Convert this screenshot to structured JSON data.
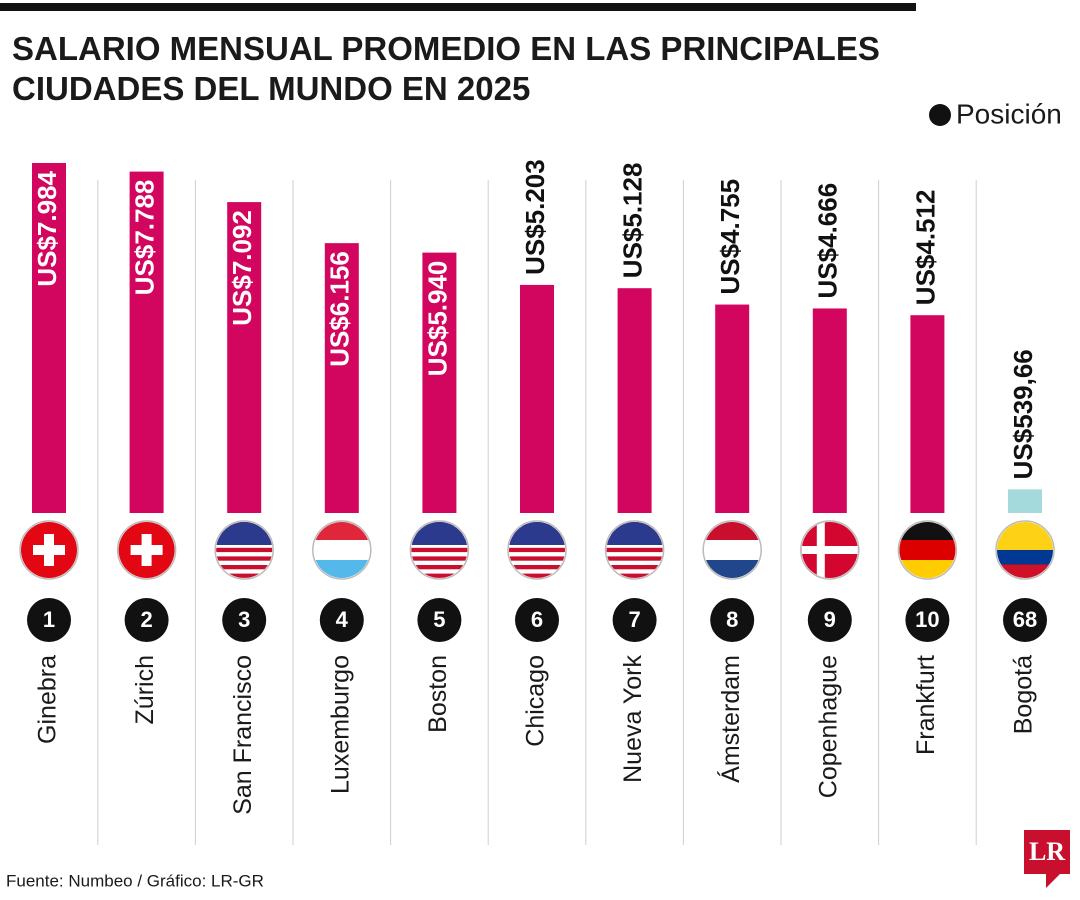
{
  "chart_data": {
    "type": "bar",
    "title": [
      "SALARIO MENSUAL PROMEDIO EN LAS PRINCIPALES",
      "CIUDADES DEL MUNDO EN 2025"
    ],
    "legend_label": "Posición",
    "categories": [
      "Ginebra",
      "Zúrich",
      "San Francisco",
      "Luxemburgo",
      "Boston",
      "Chicago",
      "Nueva York",
      "Ámsterdam",
      "Copenhague",
      "Frankfurt",
      "Bogotá"
    ],
    "values": [
      7984,
      7788,
      7092,
      6156,
      5940,
      5203,
      5128,
      4755,
      4666,
      4512,
      539.66
    ],
    "value_labels": [
      "US$7.984",
      "US$7.788",
      "US$7.092",
      "US$6.156",
      "US$5.940",
      "US$5.203",
      "US$5.128",
      "US$4.755",
      "US$4.666",
      "US$4.512",
      "US$539,66"
    ],
    "colors": [
      "#d3065f",
      "#d3065f",
      "#d3065f",
      "#d3065f",
      "#d3065f",
      "#d3065f",
      "#d3065f",
      "#d3065f",
      "#d3065f",
      "#d3065f",
      "#a5dadd"
    ],
    "ranks": [
      1,
      2,
      3,
      4,
      5,
      6,
      7,
      8,
      9,
      10,
      68
    ],
    "source": "Fuente: Numbeo / Gráfico: LR-GR",
    "logo": "LR"
  }
}
